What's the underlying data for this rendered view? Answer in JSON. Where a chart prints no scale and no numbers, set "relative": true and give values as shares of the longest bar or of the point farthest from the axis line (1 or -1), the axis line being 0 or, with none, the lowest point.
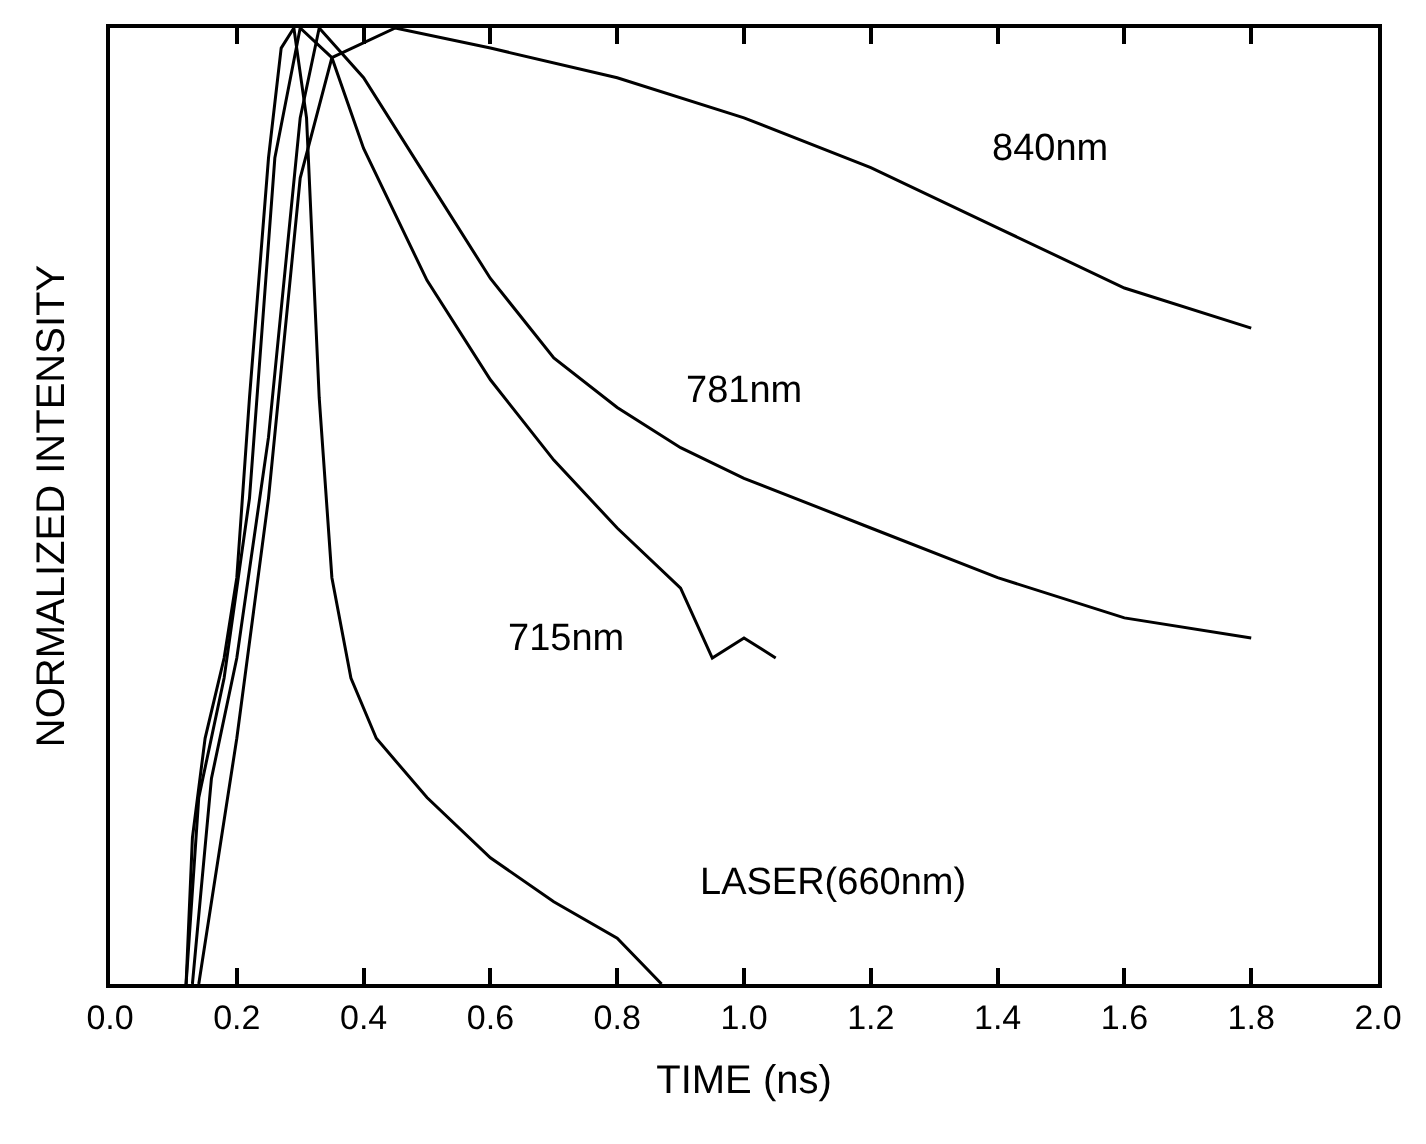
{
  "chart_data": {
    "type": "line",
    "xlabel": "TIME (ns)",
    "ylabel": "NORMALIZED INTENSITY",
    "relative": true,
    "marker": "none",
    "line_style": "solid",
    "xlim": [
      0.0,
      2.0
    ],
    "xticks": [
      {
        "value": 0.0,
        "label": "0.0"
      },
      0.2,
      0.4,
      0.6,
      0.8,
      {
        "value": 1.0,
        "label": "1.0"
      },
      1.2,
      1.4,
      1.6,
      1.8,
      {
        "value": 2.0,
        "label": "2.0"
      }
    ],
    "series": [
      {
        "color": "#000000",
        "x": [
          0.12,
          0.13,
          0.15,
          0.18,
          0.2,
          0.22,
          0.25,
          0.27,
          0.29,
          0.31,
          0.33,
          0.35,
          0.38,
          0.42,
          0.5,
          0.6,
          0.7,
          0.8,
          0.87
        ],
        "values": [
          0,
          0.153,
          0.257,
          0.341,
          0.425,
          0.613,
          0.864,
          0.979,
          1,
          0.906,
          0.613,
          0.425,
          0.32,
          0.257,
          0.195,
          0.132,
          0.086,
          0.048,
          0
        ]
      },
      {
        "color": "#000000",
        "x": [
          0.12,
          0.14,
          0.18,
          0.22,
          0.26,
          0.3,
          0.35,
          0.4,
          0.5,
          0.6,
          0.7,
          0.8,
          0.9,
          0.95,
          1.0,
          1.05
        ],
        "values": [
          0,
          0.195,
          0.32,
          0.508,
          0.864,
          1,
          0.969,
          0.874,
          0.736,
          0.632,
          0.548,
          0.477,
          0.414,
          0.341,
          0.362,
          0.341
        ]
      },
      {
        "color": "#000000",
        "x": [
          0.13,
          0.16,
          0.2,
          0.25,
          0.3,
          0.33,
          0.4,
          0.5,
          0.6,
          0.7,
          0.8,
          0.9,
          1.0,
          1.2,
          1.4,
          1.6,
          1.8
        ],
        "values": [
          0,
          0.215,
          0.341,
          0.572,
          0.906,
          1,
          0.948,
          0.843,
          0.738,
          0.655,
          0.603,
          0.561,
          0.529,
          0.477,
          0.425,
          0.383,
          0.362
        ]
      },
      {
        "color": "#000000",
        "x": [
          0.14,
          0.2,
          0.25,
          0.3,
          0.35,
          0.45,
          0.6,
          0.8,
          1.0,
          1.2,
          1.4,
          1.6,
          1.8
        ],
        "values": [
          0,
          0.257,
          0.508,
          0.843,
          0.969,
          1,
          0.979,
          0.948,
          0.906,
          0.854,
          0.791,
          0.728,
          0.686
        ]
      }
    ],
    "annotations": [
      "840nm",
      "781nm",
      "715nm",
      "LASER(660nm)"
    ]
  }
}
